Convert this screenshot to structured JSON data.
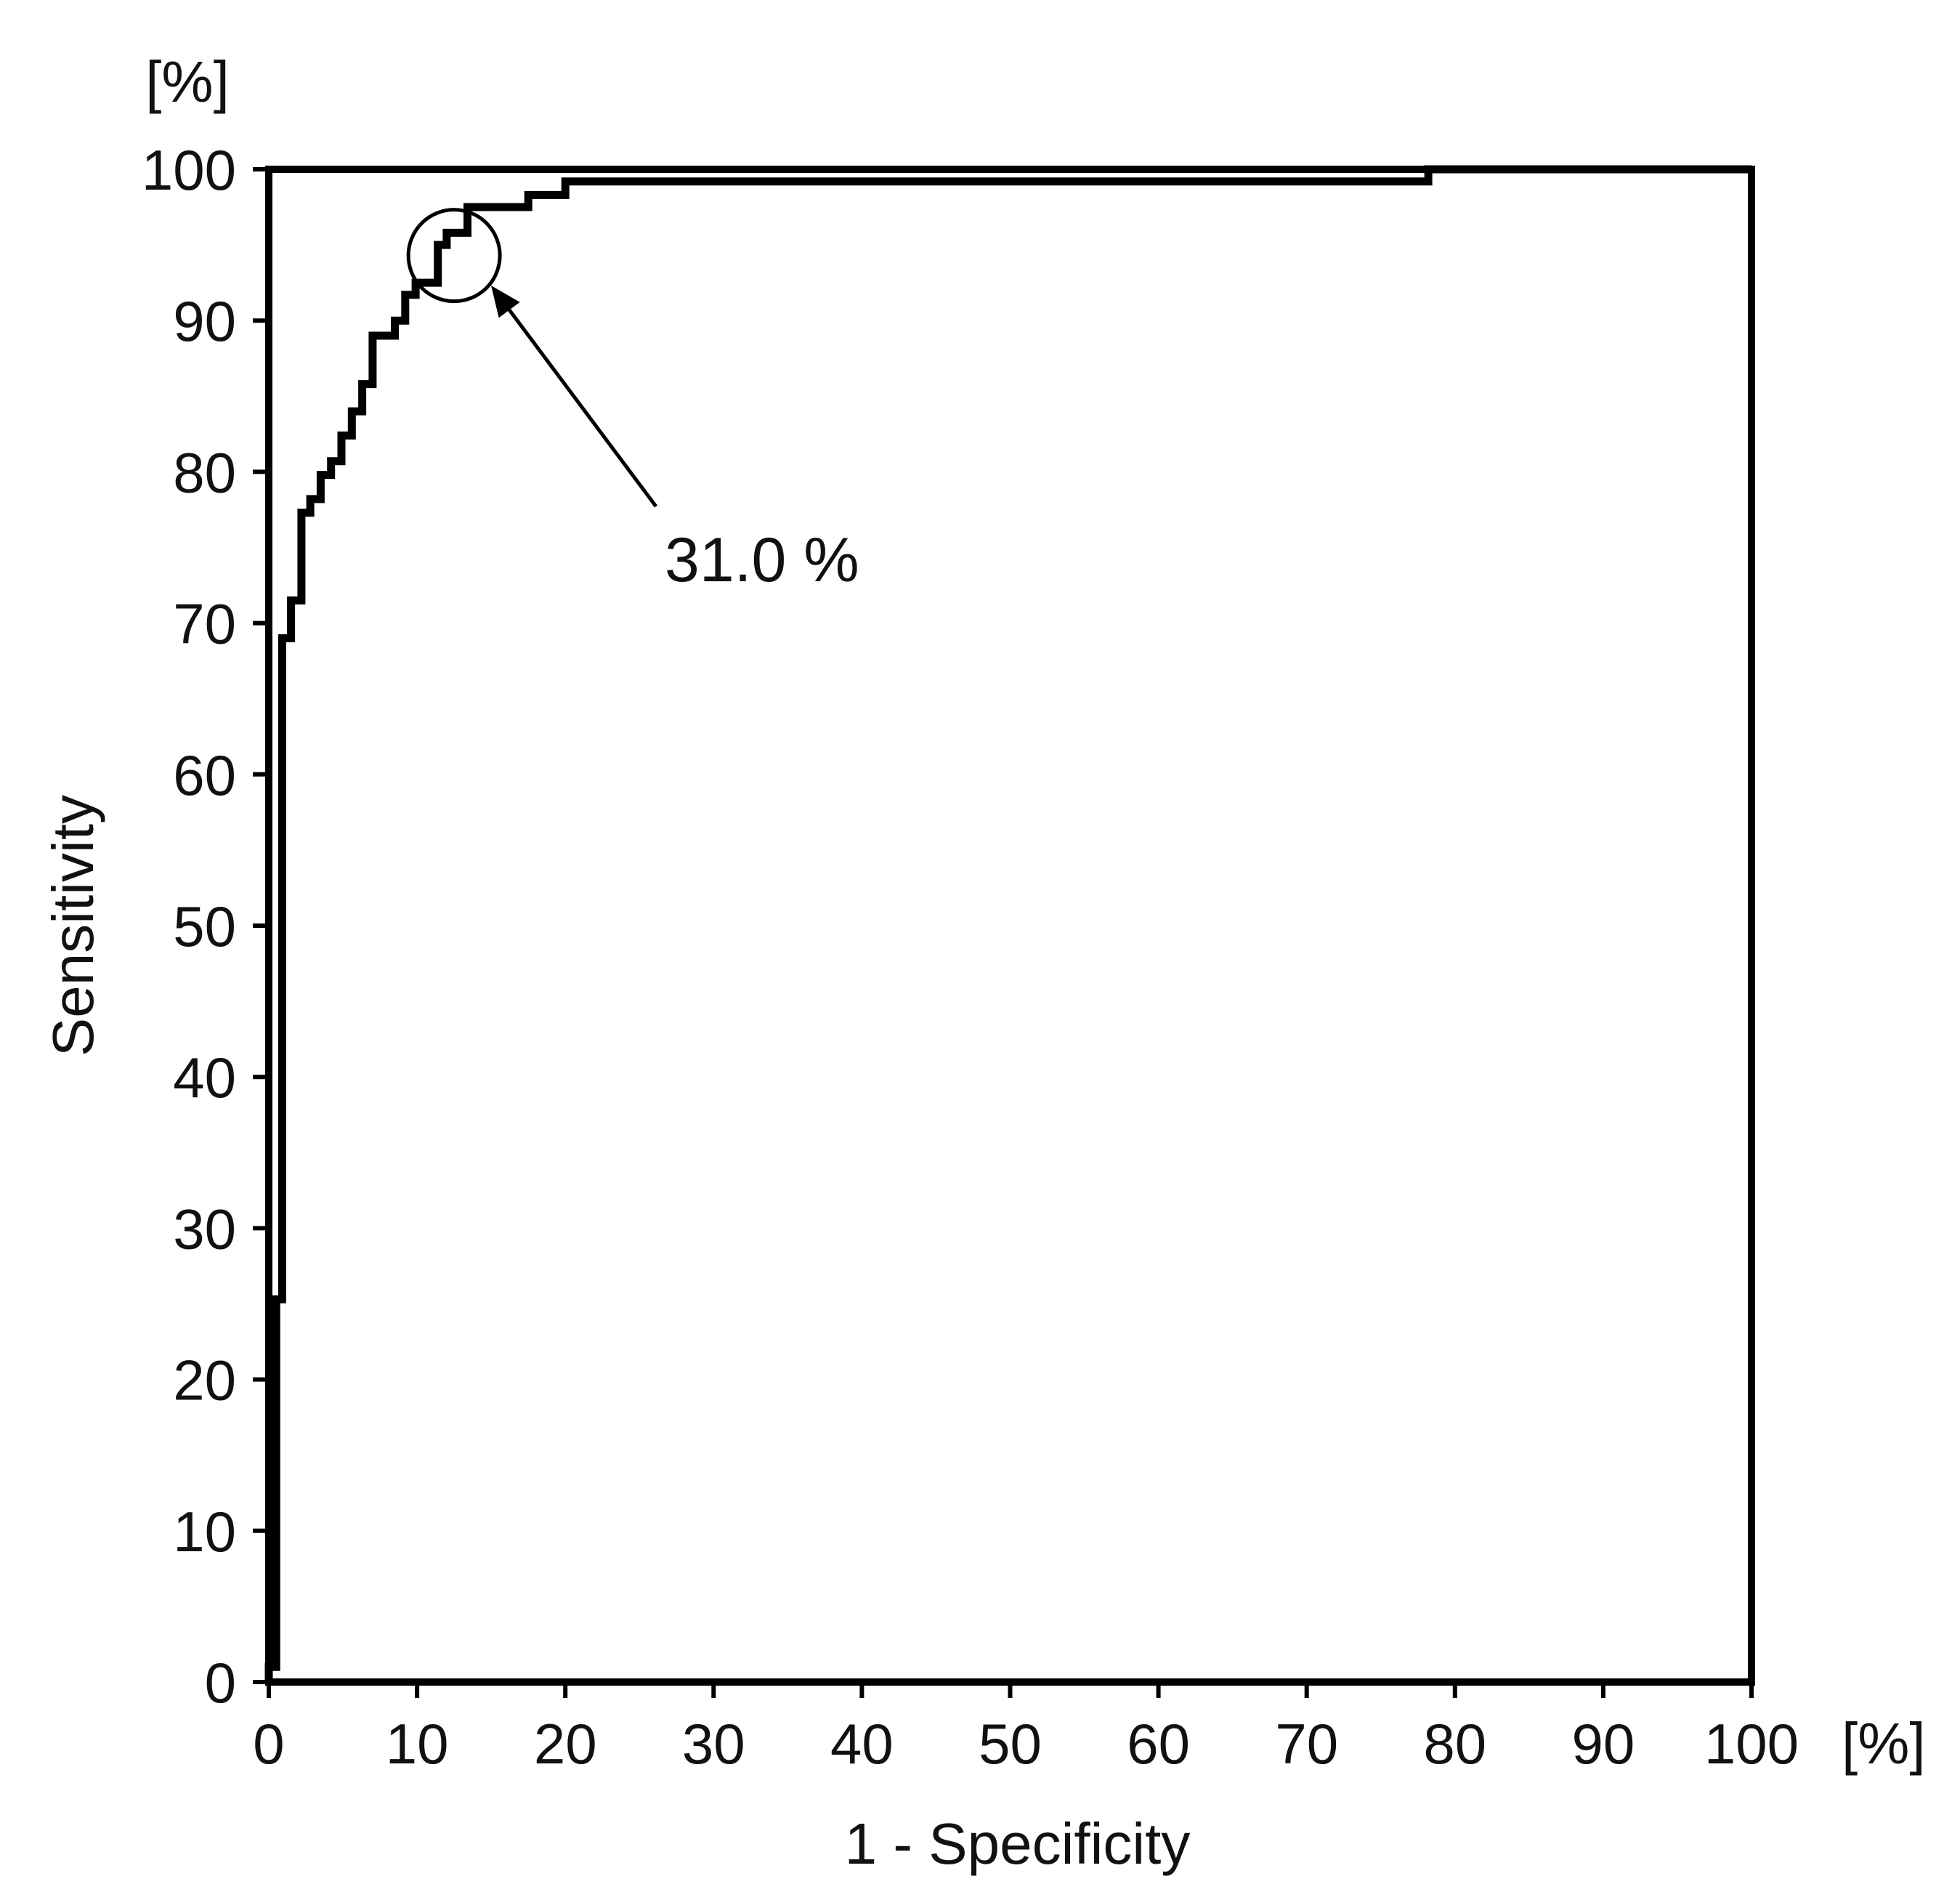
{
  "chart_data": {
    "type": "line",
    "step": true,
    "title": "",
    "xlabel": "1 - Specificity",
    "ylabel": "Sensitivity",
    "x_unit": "[%]",
    "y_unit": "[%]",
    "xlim": [
      0,
      100
    ],
    "ylim": [
      0,
      100
    ],
    "xticks": [
      0,
      10,
      20,
      30,
      40,
      50,
      60,
      70,
      80,
      90,
      100
    ],
    "yticks": [
      0,
      10,
      20,
      30,
      40,
      50,
      60,
      70,
      80,
      90,
      100
    ],
    "grid": false,
    "legend": null,
    "line_color": "#000000",
    "series": [
      {
        "x": [
          0,
          0,
          0.5,
          0.5,
          0.9,
          0.9,
          1.5,
          1.5,
          2.2,
          2.2,
          2.8,
          2.8,
          3.5,
          3.5,
          4.2,
          4.2,
          4.9,
          4.9,
          5.6,
          5.6,
          6.3,
          6.3,
          7.0,
          7.0,
          8.5,
          8.5,
          9.2,
          9.2,
          9.9,
          9.9,
          11.4,
          11.4,
          12.0,
          12.0,
          13.4,
          13.4,
          17.5,
          17.5,
          20.0,
          20.0,
          31.7,
          31.7,
          78.2,
          78.2,
          100
        ],
        "y": [
          0,
          1.0,
          1.0,
          25.3,
          25.3,
          69.0,
          69.0,
          71.5,
          71.5,
          77.3,
          77.3,
          78.2,
          78.2,
          79.8,
          79.8,
          80.7,
          80.7,
          82.4,
          82.4,
          84.0,
          84.0,
          85.8,
          85.8,
          89.0,
          89.0,
          90.0,
          90.0,
          91.7,
          91.7,
          92.5,
          92.5,
          95.0,
          95.0,
          95.8,
          95.8,
          97.5,
          97.5,
          98.3,
          98.3,
          99.2,
          99.2,
          99.2,
          99.2,
          100,
          100
        ]
      }
    ],
    "annotations": [
      {
        "text": "31.0 %",
        "target": [
          12.5,
          94.3
        ],
        "marker": "circle"
      }
    ]
  }
}
